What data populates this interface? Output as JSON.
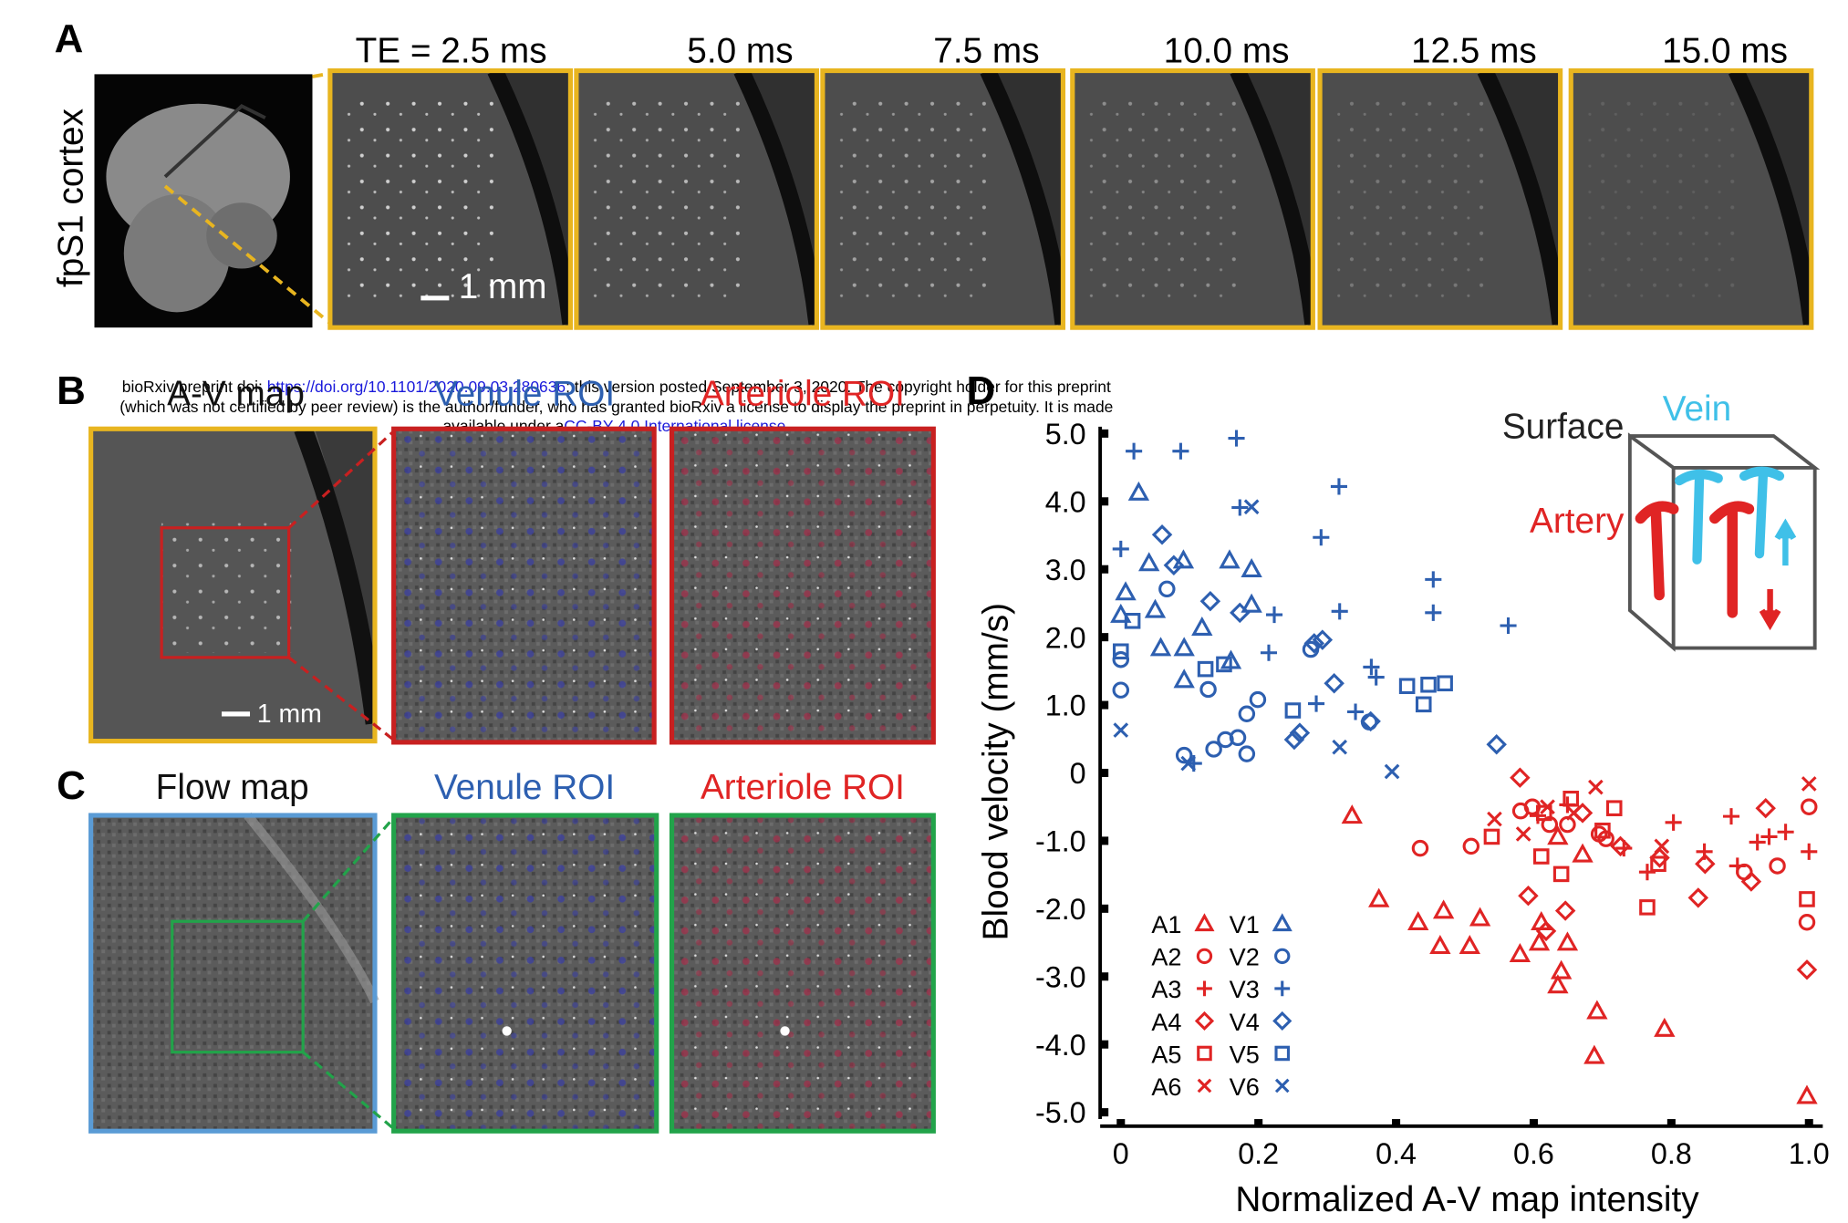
{
  "header": {
    "line1_prefix": "bioRxiv preprint doi: ",
    "doi_link": "https://doi.org/10.1101/2020.09.03.280636",
    "line1_suffix": "; this version posted September 3, 2020. The copyright holder for this preprint",
    "line2": "(which was not certified by peer review) is the author/funder, who has granted bioRxiv a license to display the preprint in perpetuity. It is made",
    "line3_prefix": "available under a",
    "license_link": "CC-BY 4.0 International license",
    "line3_suffix": "."
  },
  "panel_a": {
    "label": "A",
    "region": "fpS1 cortex",
    "echo_times": [
      "TE = 2.5 ms",
      "5.0 ms",
      "7.5 ms",
      "10.0 ms",
      "12.5 ms",
      "15.0 ms"
    ],
    "scale_bar": "1 mm"
  },
  "panel_b": {
    "label": "B",
    "titles": [
      "A-V map",
      "Venule ROI",
      "Arteriole ROI"
    ],
    "scale_bar": "1 mm"
  },
  "panel_c": {
    "label": "C",
    "titles": [
      "Flow map",
      "Venule ROI",
      "Arteriole ROI"
    ]
  },
  "chart_data": {
    "type": "scatter",
    "panel_label": "D",
    "xlabel": "Normalized A-V map intensity",
    "ylabel": "Blood velocity (mm/s)",
    "inset": {
      "surface": "Surface",
      "vein": "Vein",
      "artery": "Artery"
    },
    "xlim": [
      -0.03,
      1.02
    ],
    "ylim": [
      -5.1,
      5.1
    ],
    "xticks": [
      0,
      0.2,
      0.4,
      0.6,
      0.8,
      {
        "value": 1,
        "label": "1.0"
      }
    ],
    "yticks": [
      {
        "value": 5,
        "label": "5.0"
      },
      {
        "value": 4,
        "label": "4.0"
      },
      {
        "value": 3,
        "label": "3.0"
      },
      {
        "value": 2,
        "label": "2.0"
      },
      {
        "value": 1,
        "label": "1.0"
      },
      0,
      {
        "value": -1,
        "label": "-1.0"
      },
      {
        "value": -2,
        "label": "-2.0"
      },
      {
        "value": -3,
        "label": "-3.0"
      },
      {
        "value": -4,
        "label": "-4.0"
      },
      {
        "value": -5,
        "label": "-5.0"
      }
    ],
    "series": [
      {
        "name": "A1",
        "color": "#e02424",
        "marker": "triangle",
        "x": [
          0.336,
          0.375,
          0.432,
          0.464,
          0.469,
          0.507,
          0.522,
          0.58,
          0.608,
          0.611,
          0.635,
          0.64,
          0.649,
          0.671,
          0.692,
          0.688,
          0.79,
          0.997,
          0.635
        ],
        "values": [
          -0.63,
          -1.86,
          -2.2,
          -2.55,
          -2.03,
          -2.55,
          -2.14,
          -2.67,
          -2.5,
          -2.2,
          -3.13,
          -2.92,
          -2.5,
          -1.2,
          -3.51,
          -4.17,
          -3.77,
          -4.76,
          -0.94
        ]
      },
      {
        "name": "A2",
        "color": "#e02424",
        "marker": "circle",
        "x": [
          0.435,
          0.509,
          0.581,
          0.598,
          0.623,
          0.649,
          0.695,
          0.705,
          0.906,
          0.954,
          1.0,
          0.997
        ],
        "values": [
          -1.11,
          -1.08,
          -0.56,
          -0.5,
          -0.76,
          -0.76,
          -0.9,
          -0.97,
          -1.46,
          -1.37,
          -0.5,
          -2.2
        ]
      },
      {
        "name": "A3",
        "color": "#e02424",
        "marker": "plus",
        "x": [
          0.606,
          0.649,
          0.731,
          0.803,
          0.765,
          0.848,
          0.887,
          0.896,
          0.925,
          0.942,
          0.966,
          1.0
        ],
        "values": [
          -0.63,
          -0.47,
          -1.11,
          -0.73,
          -1.46,
          -1.16,
          -0.64,
          -1.37,
          -1.02,
          -0.94,
          -0.87,
          -1.16
        ]
      },
      {
        "name": "A4",
        "color": "#e02424",
        "marker": "diamond",
        "x": [
          0.58,
          0.592,
          0.618,
          0.646,
          0.671,
          0.726,
          0.783,
          0.839,
          0.849,
          0.937,
          0.916,
          0.997
        ],
        "values": [
          -0.07,
          -1.81,
          -2.33,
          -2.03,
          -0.59,
          -1.08,
          -1.25,
          -1.84,
          -1.34,
          -0.52,
          -1.6,
          -2.9
        ]
      },
      {
        "name": "A5",
        "color": "#e02424",
        "marker": "square",
        "x": [
          0.539,
          0.611,
          0.615,
          0.64,
          0.654,
          0.7,
          0.717,
          0.765,
          0.781,
          0.997
        ],
        "values": [
          -0.94,
          -1.23,
          -0.59,
          -1.49,
          -0.38,
          -0.85,
          -0.52,
          -1.98,
          -1.34,
          -1.86
        ]
      },
      {
        "name": "A6",
        "color": "#e02424",
        "marker": "x",
        "x": [
          0.543,
          0.585,
          0.62,
          0.658,
          0.69,
          0.786,
          1.0
        ],
        "values": [
          -0.68,
          -0.9,
          -0.5,
          -0.59,
          -0.21,
          -1.08,
          -0.16
        ]
      },
      {
        "name": "V1",
        "color": "#2d5fb0",
        "marker": "triangle",
        "x": [
          0.026,
          0.007,
          0.0,
          0.05,
          0.041,
          0.091,
          0.058,
          0.092,
          0.092,
          0.118,
          0.158,
          0.19,
          0.16,
          0.19
        ],
        "values": [
          4.13,
          2.66,
          2.33,
          2.4,
          3.09,
          3.13,
          1.84,
          1.84,
          1.37,
          2.14,
          3.13,
          3.0,
          1.65,
          2.48
        ]
      },
      {
        "name": "V2",
        "color": "#2d5fb0",
        "marker": "circle",
        "x": [
          0.0,
          0.0,
          0.067,
          0.127,
          0.092,
          0.135,
          0.152,
          0.17,
          0.183,
          0.183,
          0.199,
          0.276,
          0.361
        ],
        "values": [
          1.67,
          1.22,
          2.71,
          1.23,
          0.26,
          0.35,
          0.49,
          0.52,
          0.28,
          0.87,
          1.08,
          1.82,
          0.75
        ]
      },
      {
        "name": "V3",
        "color": "#2d5fb0",
        "marker": "plus",
        "x": [
          0.019,
          0.087,
          0.168,
          0.173,
          0.0,
          0.291,
          0.317,
          0.318,
          0.223,
          0.215,
          0.284,
          0.341,
          0.364,
          0.371,
          0.454,
          0.454,
          0.563,
          0.106
        ],
        "values": [
          4.74,
          4.74,
          4.93,
          3.91,
          3.3,
          3.47,
          4.22,
          2.38,
          2.33,
          1.77,
          1.02,
          0.9,
          1.56,
          1.41,
          2.85,
          2.36,
          2.17,
          0.14
        ]
      },
      {
        "name": "V4",
        "color": "#2d5fb0",
        "marker": "diamond",
        "x": [
          0.06,
          0.077,
          0.13,
          0.173,
          0.281,
          0.293,
          0.31,
          0.26,
          0.252,
          0.363,
          0.546
        ],
        "values": [
          3.51,
          3.06,
          2.53,
          2.36,
          1.91,
          1.96,
          1.32,
          0.59,
          0.49,
          0.76,
          0.42
        ]
      },
      {
        "name": "V5",
        "color": "#2d5fb0",
        "marker": "square",
        "x": [
          0.0,
          0.017,
          0.123,
          0.15,
          0.25,
          0.416,
          0.44,
          0.447,
          0.471
        ],
        "values": [
          1.79,
          2.24,
          1.53,
          1.6,
          0.92,
          1.28,
          1.01,
          1.3,
          1.32
        ]
      },
      {
        "name": "V6",
        "color": "#2d5fb0",
        "marker": "x",
        "x": [
          0.0,
          0.098,
          0.19,
          0.318,
          0.394
        ],
        "values": [
          0.63,
          0.14,
          3.92,
          0.38,
          0.02
        ]
      }
    ]
  }
}
